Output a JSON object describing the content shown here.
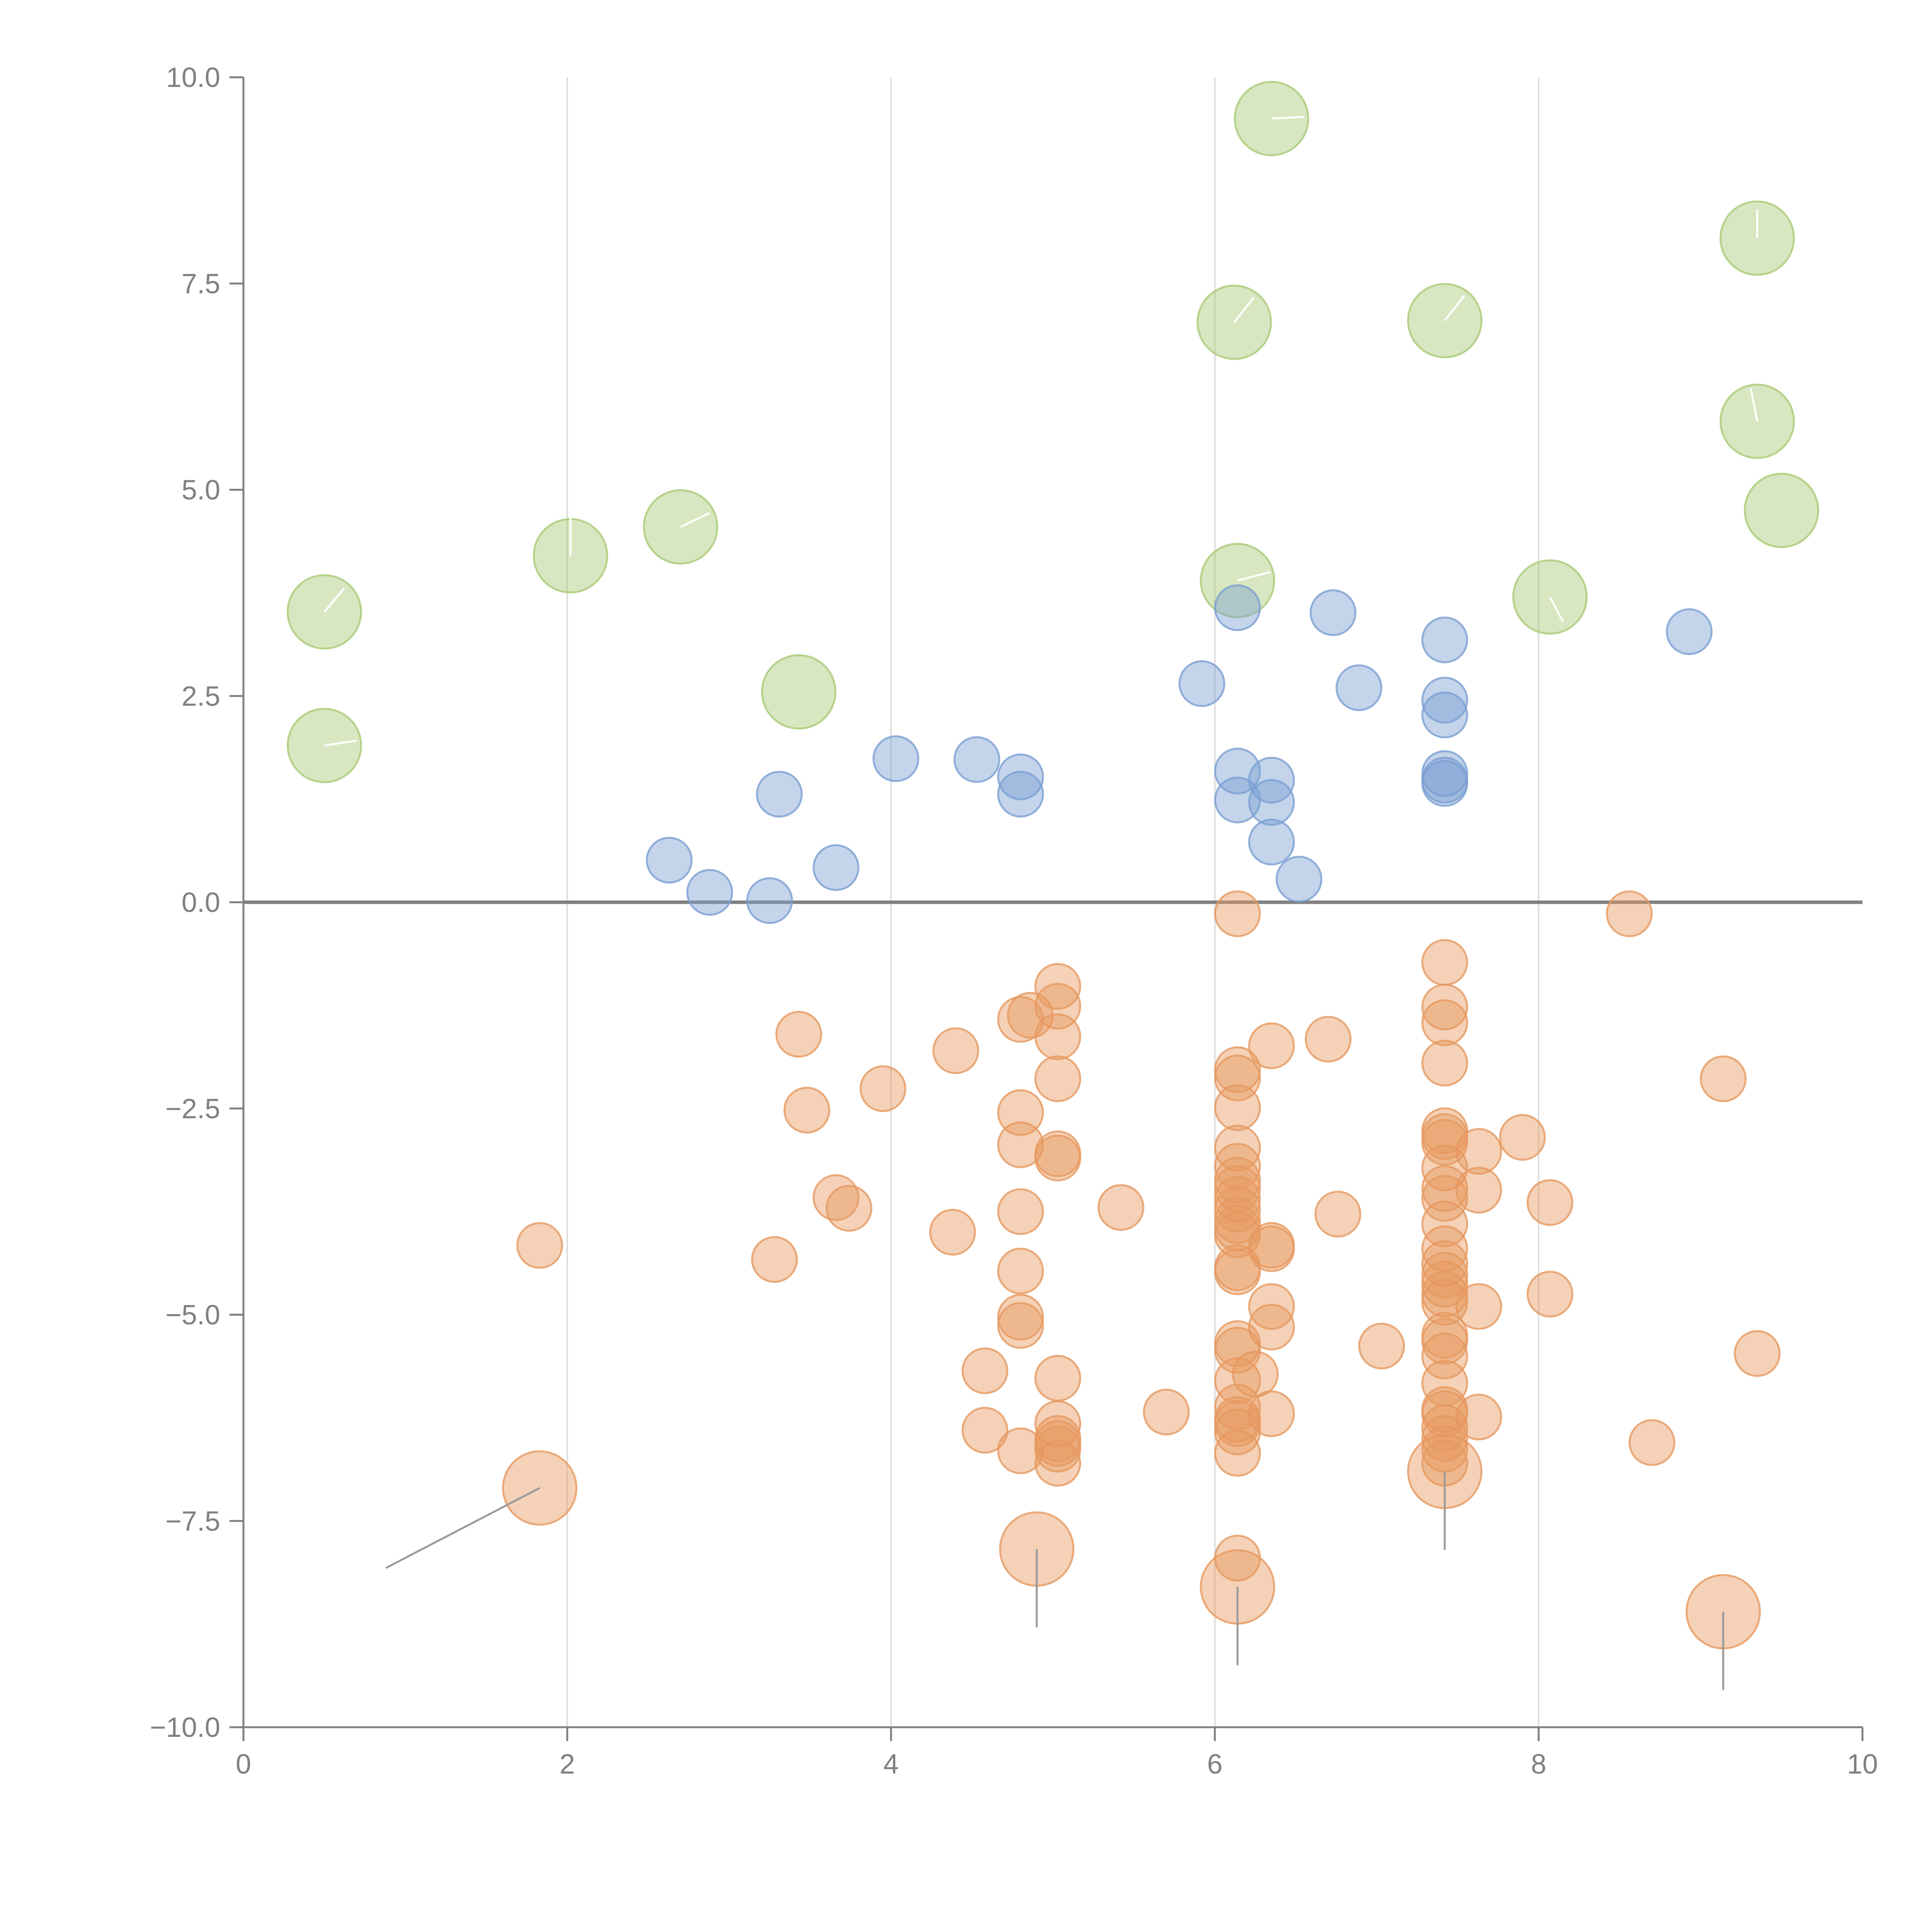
{
  "chart_data": {
    "type": "scatter",
    "title": "",
    "xlabel": "",
    "ylabel": "",
    "xlim": [
      0,
      10
    ],
    "ylim": [
      -10,
      10
    ],
    "x_ticks": [
      "0",
      "2",
      "4",
      "6",
      "8",
      "10"
    ],
    "y_ticks": [
      "10.0",
      "7.5",
      "5.0",
      "2.5",
      "0.0",
      "−2.5",
      "−5.0",
      "−7.5",
      "−10.0"
    ],
    "x_tick_values": [
      0,
      2,
      4,
      6,
      8,
      10
    ],
    "y_tick_values": [
      10,
      7.5,
      5,
      2.5,
      0,
      -2.5,
      -5,
      -7.5,
      -10
    ],
    "gridlines_x": [
      2,
      4,
      6,
      8
    ],
    "baseline_y": 0,
    "colors": {
      "green": "#a9ca76",
      "blue": "#7b9fd2",
      "orange": "#e6995f",
      "axis": "#808080",
      "grid": "#dddddd",
      "white_tick": "#ffffff",
      "grey_tick": "#9a9a9a"
    },
    "series": [
      {
        "name": "green",
        "size": "large",
        "points": [
          {
            "x": 6.35,
            "y": 9.5,
            "tick": {
              "dx": 0.2,
              "dy": 0.02
            }
          },
          {
            "x": 9.35,
            "y": 8.05,
            "tick": {
              "dx": 0.0,
              "dy": 0.35
            }
          },
          {
            "x": 6.12,
            "y": 7.03,
            "tick": {
              "dx": 0.12,
              "dy": 0.3
            }
          },
          {
            "x": 7.42,
            "y": 7.05,
            "tick": {
              "dx": 0.12,
              "dy": 0.3
            }
          },
          {
            "x": 9.35,
            "y": 5.83,
            "tick": {
              "dx": -0.04,
              "dy": 0.4
            }
          },
          {
            "x": 9.5,
            "y": 4.75,
            "tick": null
          },
          {
            "x": 2.02,
            "y": 4.2,
            "tick": {
              "dx": 0.0,
              "dy": 0.5
            }
          },
          {
            "x": 2.7,
            "y": 4.55,
            "tick": {
              "dx": 0.18,
              "dy": 0.17
            }
          },
          {
            "x": 0.5,
            "y": 3.52,
            "tick": {
              "dx": 0.12,
              "dy": 0.28
            }
          },
          {
            "x": 6.14,
            "y": 3.9,
            "tick": {
              "dx": 0.2,
              "dy": 0.1
            }
          },
          {
            "x": 8.07,
            "y": 3.7,
            "tick": {
              "dx": 0.08,
              "dy": -0.3
            }
          },
          {
            "x": 3.43,
            "y": 2.55,
            "tick": null
          },
          {
            "x": 0.5,
            "y": 1.9,
            "tick": {
              "dx": 0.2,
              "dy": 0.06
            }
          }
        ]
      },
      {
        "name": "blue",
        "size": "small",
        "points": [
          {
            "x": 6.14,
            "y": 3.57
          },
          {
            "x": 6.73,
            "y": 3.51
          },
          {
            "x": 7.42,
            "y": 3.18
          },
          {
            "x": 8.93,
            "y": 3.28
          },
          {
            "x": 5.92,
            "y": 2.65
          },
          {
            "x": 6.89,
            "y": 2.6
          },
          {
            "x": 7.42,
            "y": 2.45
          },
          {
            "x": 7.42,
            "y": 2.27
          },
          {
            "x": 4.03,
            "y": 1.74
          },
          {
            "x": 4.53,
            "y": 1.73
          },
          {
            "x": 4.8,
            "y": 1.52
          },
          {
            "x": 4.8,
            "y": 1.31
          },
          {
            "x": 3.31,
            "y": 1.31
          },
          {
            "x": 6.14,
            "y": 1.59
          },
          {
            "x": 6.35,
            "y": 1.48
          },
          {
            "x": 6.14,
            "y": 1.24
          },
          {
            "x": 6.35,
            "y": 1.21
          },
          {
            "x": 7.42,
            "y": 1.56
          },
          {
            "x": 7.42,
            "y": 1.48
          },
          {
            "x": 7.42,
            "y": 1.44
          },
          {
            "x": 6.35,
            "y": 0.73
          },
          {
            "x": 2.63,
            "y": 0.51
          },
          {
            "x": 3.66,
            "y": 0.42
          },
          {
            "x": 2.88,
            "y": 0.12
          },
          {
            "x": 3.25,
            "y": 0.02
          },
          {
            "x": 6.52,
            "y": 0.28
          }
        ]
      },
      {
        "name": "orange",
        "size": "small",
        "points": [
          {
            "x": 6.14,
            "y": -0.14
          },
          {
            "x": 8.56,
            "y": -0.14
          },
          {
            "x": 7.42,
            "y": -0.73
          },
          {
            "x": 5.03,
            "y": -1.02
          },
          {
            "x": 5.03,
            "y": -1.26
          },
          {
            "x": 4.86,
            "y": -1.37
          },
          {
            "x": 4.8,
            "y": -1.42
          },
          {
            "x": 3.43,
            "y": -1.6
          },
          {
            "x": 5.03,
            "y": -1.63
          },
          {
            "x": 7.42,
            "y": -1.27
          },
          {
            "x": 7.42,
            "y": -1.46
          },
          {
            "x": 6.35,
            "y": -1.74
          },
          {
            "x": 6.7,
            "y": -1.66
          },
          {
            "x": 4.4,
            "y": -1.8
          },
          {
            "x": 7.42,
            "y": -1.95
          },
          {
            "x": 6.14,
            "y": -2.03
          },
          {
            "x": 6.14,
            "y": -2.13
          },
          {
            "x": 5.03,
            "y": -2.14
          },
          {
            "x": 9.14,
            "y": -2.14
          },
          {
            "x": 3.95,
            "y": -2.26
          },
          {
            "x": 6.14,
            "y": -2.49
          },
          {
            "x": 3.48,
            "y": -2.52
          },
          {
            "x": 4.8,
            "y": -2.55
          },
          {
            "x": 7.42,
            "y": -2.77
          },
          {
            "x": 7.42,
            "y": -2.84
          },
          {
            "x": 7.42,
            "y": -2.91
          },
          {
            "x": 7.9,
            "y": -2.85
          },
          {
            "x": 4.8,
            "y": -2.94
          },
          {
            "x": 6.14,
            "y": -2.98
          },
          {
            "x": 7.63,
            "y": -3.02
          },
          {
            "x": 5.03,
            "y": -3.05
          },
          {
            "x": 5.03,
            "y": -3.1
          },
          {
            "x": 6.14,
            "y": -3.2
          },
          {
            "x": 7.42,
            "y": -3.22
          },
          {
            "x": 6.14,
            "y": -3.37
          },
          {
            "x": 6.14,
            "y": -3.47
          },
          {
            "x": 7.42,
            "y": -3.47
          },
          {
            "x": 7.63,
            "y": -3.49
          },
          {
            "x": 3.66,
            "y": -3.58
          },
          {
            "x": 7.42,
            "y": -3.59
          },
          {
            "x": 6.14,
            "y": -3.6
          },
          {
            "x": 8.07,
            "y": -3.64
          },
          {
            "x": 3.74,
            "y": -3.71
          },
          {
            "x": 5.42,
            "y": -3.7
          },
          {
            "x": 6.14,
            "y": -3.72
          },
          {
            "x": 4.8,
            "y": -3.75
          },
          {
            "x": 6.76,
            "y": -3.78
          },
          {
            "x": 6.14,
            "y": -3.86
          },
          {
            "x": 7.42,
            "y": -3.9
          },
          {
            "x": 6.14,
            "y": -3.95
          },
          {
            "x": 4.38,
            "y": -4.0
          },
          {
            "x": 6.14,
            "y": -4.03
          },
          {
            "x": 1.83,
            "y": -4.16
          },
          {
            "x": 6.35,
            "y": -4.16
          },
          {
            "x": 6.35,
            "y": -4.2
          },
          {
            "x": 7.42,
            "y": -4.2
          },
          {
            "x": 3.28,
            "y": -4.33
          },
          {
            "x": 7.42,
            "y": -4.38
          },
          {
            "x": 6.14,
            "y": -4.43
          },
          {
            "x": 6.14,
            "y": -4.48
          },
          {
            "x": 4.8,
            "y": -4.47
          },
          {
            "x": 7.42,
            "y": -4.52
          },
          {
            "x": 7.42,
            "y": -4.63
          },
          {
            "x": 7.42,
            "y": -4.75
          },
          {
            "x": 8.07,
            "y": -4.75
          },
          {
            "x": 7.42,
            "y": -4.85
          },
          {
            "x": 6.35,
            "y": -4.9
          },
          {
            "x": 7.63,
            "y": -4.9
          },
          {
            "x": 4.8,
            "y": -5.03
          },
          {
            "x": 4.8,
            "y": -5.13
          },
          {
            "x": 6.35,
            "y": -5.15
          },
          {
            "x": 7.42,
            "y": -5.25
          },
          {
            "x": 7.42,
            "y": -5.32
          },
          {
            "x": 6.14,
            "y": -5.35
          },
          {
            "x": 6.14,
            "y": -5.43
          },
          {
            "x": 7.03,
            "y": -5.38
          },
          {
            "x": 9.35,
            "y": -5.47
          },
          {
            "x": 7.42,
            "y": -5.5
          },
          {
            "x": 4.58,
            "y": -5.68
          },
          {
            "x": 6.25,
            "y": -5.72
          },
          {
            "x": 5.03,
            "y": -5.77
          },
          {
            "x": 6.14,
            "y": -5.8
          },
          {
            "x": 7.42,
            "y": -5.83
          },
          {
            "x": 6.14,
            "y": -6.12
          },
          {
            "x": 7.42,
            "y": -6.15
          },
          {
            "x": 5.7,
            "y": -6.18
          },
          {
            "x": 6.35,
            "y": -6.2
          },
          {
            "x": 7.42,
            "y": -6.2
          },
          {
            "x": 7.63,
            "y": -6.24
          },
          {
            "x": 6.14,
            "y": -6.27
          },
          {
            "x": 6.14,
            "y": -6.32
          },
          {
            "x": 5.03,
            "y": -6.32
          },
          {
            "x": 7.42,
            "y": -6.37
          },
          {
            "x": 4.58,
            "y": -6.4
          },
          {
            "x": 6.14,
            "y": -6.42
          },
          {
            "x": 5.03,
            "y": -6.5
          },
          {
            "x": 5.03,
            "y": -6.56
          },
          {
            "x": 7.42,
            "y": -6.5
          },
          {
            "x": 8.7,
            "y": -6.55
          },
          {
            "x": 5.03,
            "y": -6.63
          },
          {
            "x": 7.42,
            "y": -6.63
          },
          {
            "x": 4.8,
            "y": -6.65
          },
          {
            "x": 6.14,
            "y": -6.68
          },
          {
            "x": 5.03,
            "y": -6.8
          },
          {
            "x": 7.42,
            "y": -6.8
          },
          {
            "x": 6.14,
            "y": -7.95
          }
        ]
      },
      {
        "name": "orange-large",
        "size": "large",
        "points": [
          {
            "x": 1.83,
            "y": -7.1,
            "tick": {
              "dx": -0.95,
              "dy": -0.97
            }
          },
          {
            "x": 4.9,
            "y": -7.84,
            "tick": {
              "dx": 0.0,
              "dy": -0.95
            }
          },
          {
            "x": 6.14,
            "y": -8.3,
            "tick": {
              "dx": 0.0,
              "dy": -0.95
            }
          },
          {
            "x": 7.42,
            "y": -6.9,
            "tick": {
              "dx": 0.0,
              "dy": -0.95
            }
          },
          {
            "x": 9.14,
            "y": -8.6,
            "tick": {
              "dx": 0.0,
              "dy": -0.95
            }
          }
        ]
      }
    ]
  }
}
